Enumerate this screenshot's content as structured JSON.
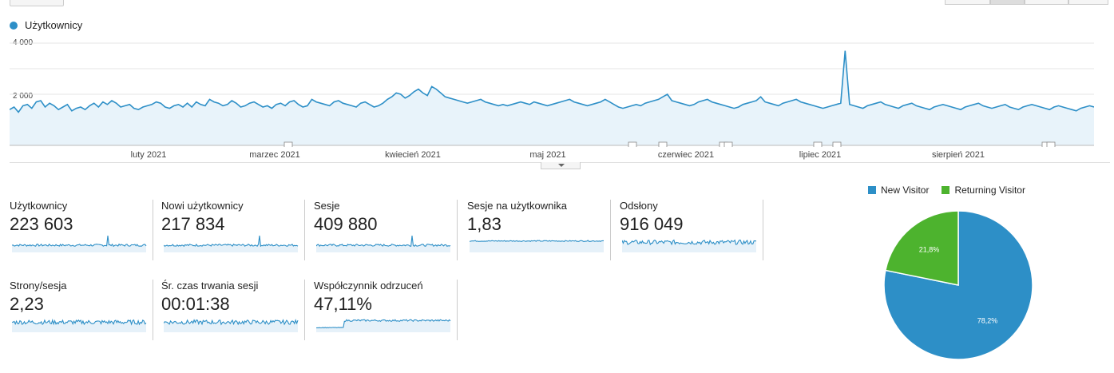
{
  "legend": {
    "label": "Użytkownicy",
    "color": "#2d8fc7"
  },
  "main_chart": {
    "y_ticks": [
      "4 000",
      "2 000"
    ],
    "months": [
      "luty 2021",
      "marzec 2021",
      "kwiecień 2021",
      "maj 2021",
      "czerwiec 2021",
      "lipiec 2021",
      "sierpień 2021"
    ],
    "annotation_count": 9
  },
  "chart_data": {
    "type": "line",
    "series": [
      {
        "name": "Użytkownicy",
        "values": [
          1400,
          1500,
          1300,
          1550,
          1600,
          1450,
          1700,
          1750,
          1500,
          1650,
          1550,
          1400,
          1500,
          1600,
          1350,
          1450,
          1500,
          1400,
          1550,
          1650,
          1500,
          1700,
          1600,
          1750,
          1650,
          1500,
          1550,
          1600,
          1450,
          1400,
          1500,
          1550,
          1600,
          1700,
          1650,
          1500,
          1450,
          1550,
          1600,
          1500,
          1650,
          1500,
          1700,
          1600,
          1550,
          1800,
          1700,
          1650,
          1550,
          1600,
          1750,
          1650,
          1500,
          1550,
          1650,
          1700,
          1600,
          1500,
          1550,
          1450,
          1600,
          1650,
          1550,
          1700,
          1750,
          1600,
          1500,
          1550,
          1800,
          1700,
          1650,
          1600,
          1550,
          1700,
          1750,
          1650,
          1600,
          1550,
          1500,
          1650,
          1700,
          1600,
          1500,
          1550,
          1650,
          1800,
          1900,
          2050,
          2000,
          1850,
          1950,
          2100,
          2200,
          2050,
          1950,
          2300,
          2200,
          2050,
          1900,
          1850,
          1800,
          1750,
          1700,
          1650,
          1700,
          1750,
          1800,
          1700,
          1650,
          1600,
          1550,
          1600,
          1550,
          1600,
          1650,
          1700,
          1650,
          1600,
          1700,
          1650,
          1600,
          1550,
          1600,
          1650,
          1700,
          1750,
          1800,
          1700,
          1650,
          1600,
          1550,
          1600,
          1650,
          1700,
          1800,
          1700,
          1600,
          1500,
          1450,
          1500,
          1550,
          1600,
          1550,
          1650,
          1700,
          1750,
          1800,
          1900,
          2000,
          1750,
          1700,
          1650,
          1600,
          1550,
          1600,
          1700,
          1750,
          1800,
          1700,
          1650,
          1600,
          1550,
          1500,
          1450,
          1500,
          1600,
          1650,
          1700,
          1750,
          1900,
          1700,
          1650,
          1600,
          1550,
          1650,
          1700,
          1750,
          1800,
          1700,
          1650,
          1600,
          1550,
          1500,
          1450,
          1500,
          1550,
          1600,
          1650,
          3700,
          1600,
          1550,
          1500,
          1450,
          1550,
          1600,
          1650,
          1700,
          1600,
          1550,
          1500,
          1450,
          1550,
          1600,
          1650,
          1550,
          1500,
          1450,
          1400,
          1500,
          1550,
          1600,
          1550,
          1500,
          1450,
          1400,
          1500,
          1550,
          1600,
          1650,
          1550,
          1500,
          1450,
          1500,
          1550,
          1600,
          1500,
          1450,
          1400,
          1500,
          1550,
          1600,
          1550,
          1500,
          1450,
          1400,
          1500,
          1550,
          1500,
          1450,
          1400,
          1350,
          1450,
          1500,
          1550,
          1500
        ],
        "color": "#2d8fc7"
      }
    ],
    "y_ticks": [
      2000,
      4000
    ],
    "ylim": [
      0,
      4000
    ],
    "grid": true
  },
  "metrics": [
    {
      "label": "Użytkownicy",
      "value": "223 603",
      "spark": "spiky"
    },
    {
      "label": "Nowi użytkownicy",
      "value": "217 834",
      "spark": "spiky"
    },
    {
      "label": "Sesje",
      "value": "409 880",
      "spark": "spiky"
    },
    {
      "label": "Sesje na użytkownika",
      "value": "1,83",
      "spark": "flat"
    },
    {
      "label": "Odsłony",
      "value": "916 049",
      "spark": "noisy"
    },
    {
      "label": "Strony/sesja",
      "value": "2,23",
      "spark": "noisy"
    },
    {
      "label": "Śr. czas trwania sesji",
      "value": "00:01:38",
      "spark": "noisy"
    },
    {
      "label": "Współczynnik odrzuceń",
      "value": "47,11%",
      "spark": "step"
    }
  ],
  "pie": {
    "legend": [
      {
        "label": "New Visitor",
        "color": "#2d8fc7"
      },
      {
        "label": "Returning Visitor",
        "color": "#4db32e"
      }
    ],
    "slices": [
      {
        "label": "78,2%",
        "value": 78.2,
        "color": "#2d8fc7"
      },
      {
        "label": "21,8%",
        "value": 21.8,
        "color": "#4db32e"
      }
    ]
  }
}
